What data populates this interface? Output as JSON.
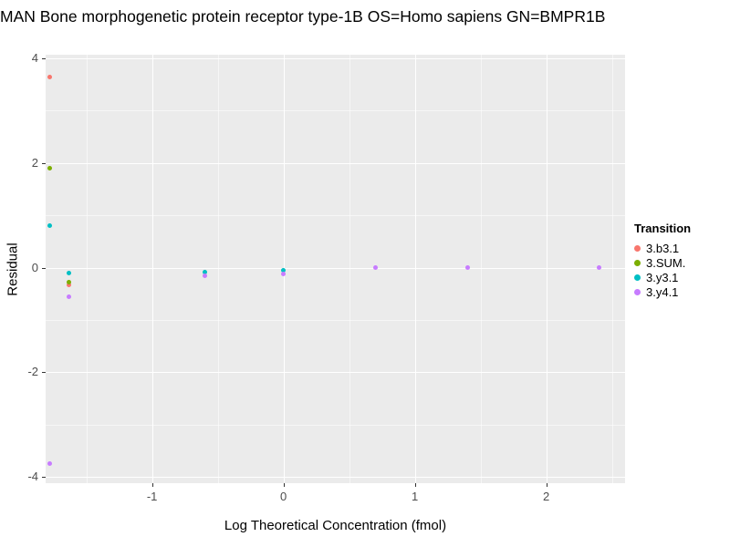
{
  "title": "MAN Bone morphogenetic protein receptor type-1B OS=Homo sapiens GN=BMPR1B",
  "chart_data": {
    "type": "scatter",
    "title": "MAN Bone morphogenetic protein receptor type-1B OS=Homo sapiens GN=BMPR1B",
    "xlabel": "Log Theoretical Concentration (fmol)",
    "ylabel": "Residual",
    "xlim": [
      -1.81,
      2.6
    ],
    "ylim": [
      -4.12,
      4.07
    ],
    "x_major_ticks": [
      -1,
      0,
      1,
      2
    ],
    "x_minor_ticks": [
      -1.5,
      -0.5,
      0.5,
      1.5,
      2.5
    ],
    "y_major_ticks": [
      -4,
      -2,
      0,
      2,
      4
    ],
    "y_minor_ticks": [
      -3,
      -1,
      1,
      3
    ],
    "grid": true,
    "panel_bg": "#EBEBEB",
    "legend_position": "right",
    "legend": {
      "title": "Transition",
      "items": [
        {
          "label": "3.b3.1",
          "color": "#F8766D"
        },
        {
          "label": "3.SUM.",
          "color": "#7CAE00"
        },
        {
          "label": "3.y3.1",
          "color": "#00BFC4"
        },
        {
          "label": "3.y4.1",
          "color": "#C77CFF"
        }
      ]
    },
    "series": [
      {
        "name": "3.b3.1",
        "color": "#F8766D",
        "points": [
          [
            -1.78,
            3.65
          ],
          [
            -1.63,
            -0.33
          ]
        ]
      },
      {
        "name": "3.SUM.",
        "color": "#7CAE00",
        "points": [
          [
            -1.78,
            1.9
          ],
          [
            -1.63,
            -0.28
          ]
        ]
      },
      {
        "name": "3.y3.1",
        "color": "#00BFC4",
        "points": [
          [
            -1.78,
            0.8
          ],
          [
            -1.63,
            -0.1
          ],
          [
            -0.6,
            -0.08
          ],
          [
            0.0,
            -0.05
          ]
        ]
      },
      {
        "name": "3.y4.1",
        "color": "#C77CFF",
        "points": [
          [
            -1.78,
            -3.75
          ],
          [
            -1.63,
            -0.55
          ],
          [
            -0.6,
            -0.16
          ],
          [
            0.0,
            -0.12
          ],
          [
            0.7,
            0.0
          ],
          [
            1.4,
            0.0
          ],
          [
            2.4,
            0.0
          ]
        ]
      }
    ]
  }
}
